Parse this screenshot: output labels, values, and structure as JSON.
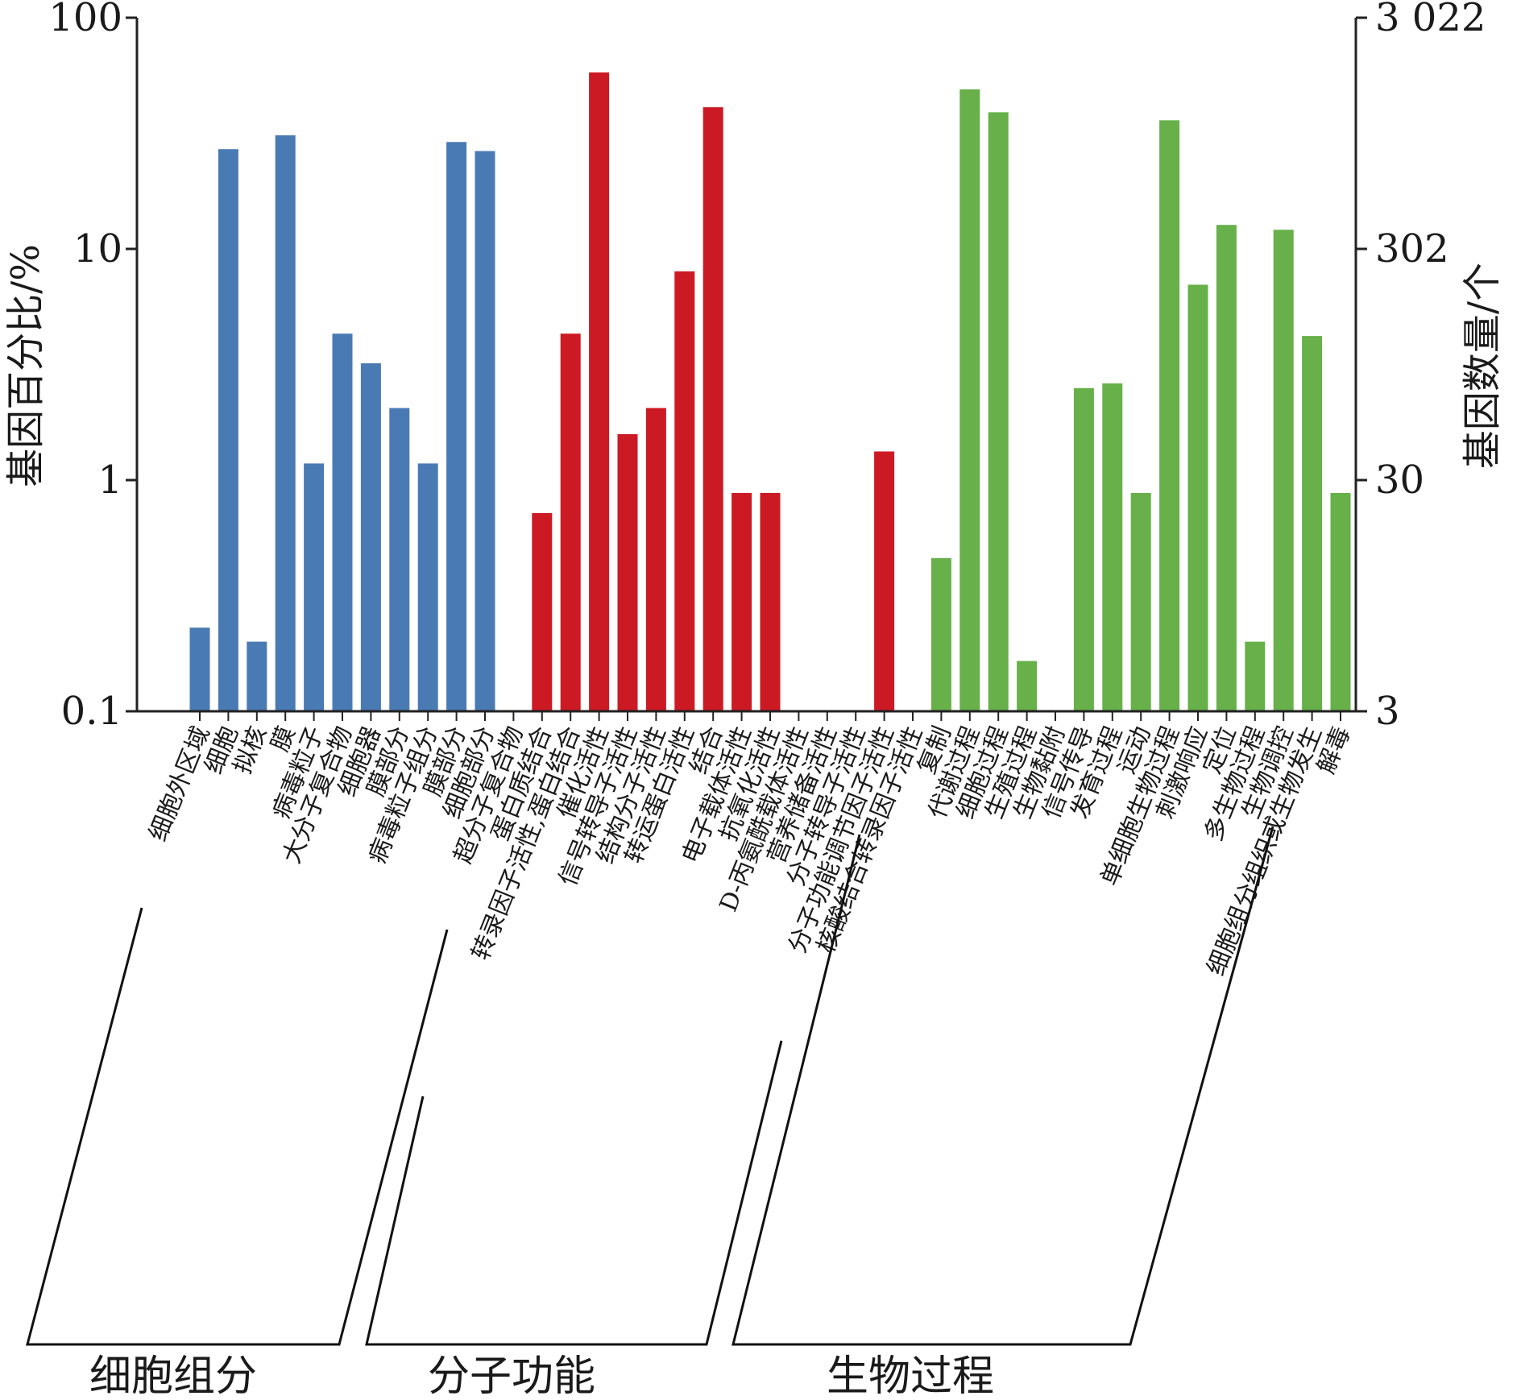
{
  "chart_data": {
    "type": "bar",
    "title": "",
    "ylabel": "基因百分比/%",
    "y2label": "基因数量/个",
    "yscale": "log",
    "ylim": [
      0.1,
      100
    ],
    "yticks": [
      "100",
      "10",
      "1",
      "0.1"
    ],
    "y2ticks": [
      "3 022",
      "302",
      "30",
      "3"
    ],
    "grid": false,
    "legend": "none",
    "colors": {
      "细胞组分": "#4a7ab4",
      "分子功能": "#cc1a24",
      "生物过程": "#67b04a"
    },
    "groups": [
      {
        "name": "细胞组分",
        "categories": [
          "细胞外区域",
          "细胞",
          "拟核",
          "膜",
          "病毒粒子",
          "大分子复合物",
          "细胞器",
          "膜部分",
          "病毒粒子组分",
          "膜部分",
          "细胞部分",
          "超分子复合物"
        ],
        "values": [
          0.23,
          27,
          0.2,
          31,
          1.18,
          4.3,
          3.2,
          2.05,
          1.18,
          29,
          26.5,
          null
        ]
      },
      {
        "name": "分子功能",
        "categories": [
          "蛋白质结合",
          "转录因子活性,蛋白结合",
          "催化活性",
          "信号转导子活性",
          "结构分子活性",
          "转运蛋白活性",
          "结合",
          "电子载体活性",
          "抗氧化活性",
          "D-丙氨酰载体活性",
          "营养储备活性",
          "分子转导子活性",
          "分子功能调节因子活性",
          "核酸结合转录因子活性"
        ],
        "values": [
          0.72,
          4.3,
          58,
          1.58,
          2.05,
          8.0,
          41,
          0.88,
          0.88,
          null,
          null,
          null,
          1.33,
          null
        ]
      },
      {
        "name": "生物过程",
        "categories": [
          "复制",
          "代谢过程",
          "细胞过程",
          "生殖过程",
          "生物黏附",
          "信号传导",
          "发育过程",
          "运动",
          "单细胞生物过程",
          "刺激响应",
          "定位",
          "多生物过程",
          "生物调控",
          "细胞组分组织或生物发生",
          "解毒"
        ],
        "values": [
          0.46,
          49,
          39,
          0.165,
          null,
          2.5,
          2.62,
          0.88,
          36,
          7.0,
          12.7,
          0.2,
          12.1,
          4.2,
          0.88
        ]
      }
    ]
  }
}
